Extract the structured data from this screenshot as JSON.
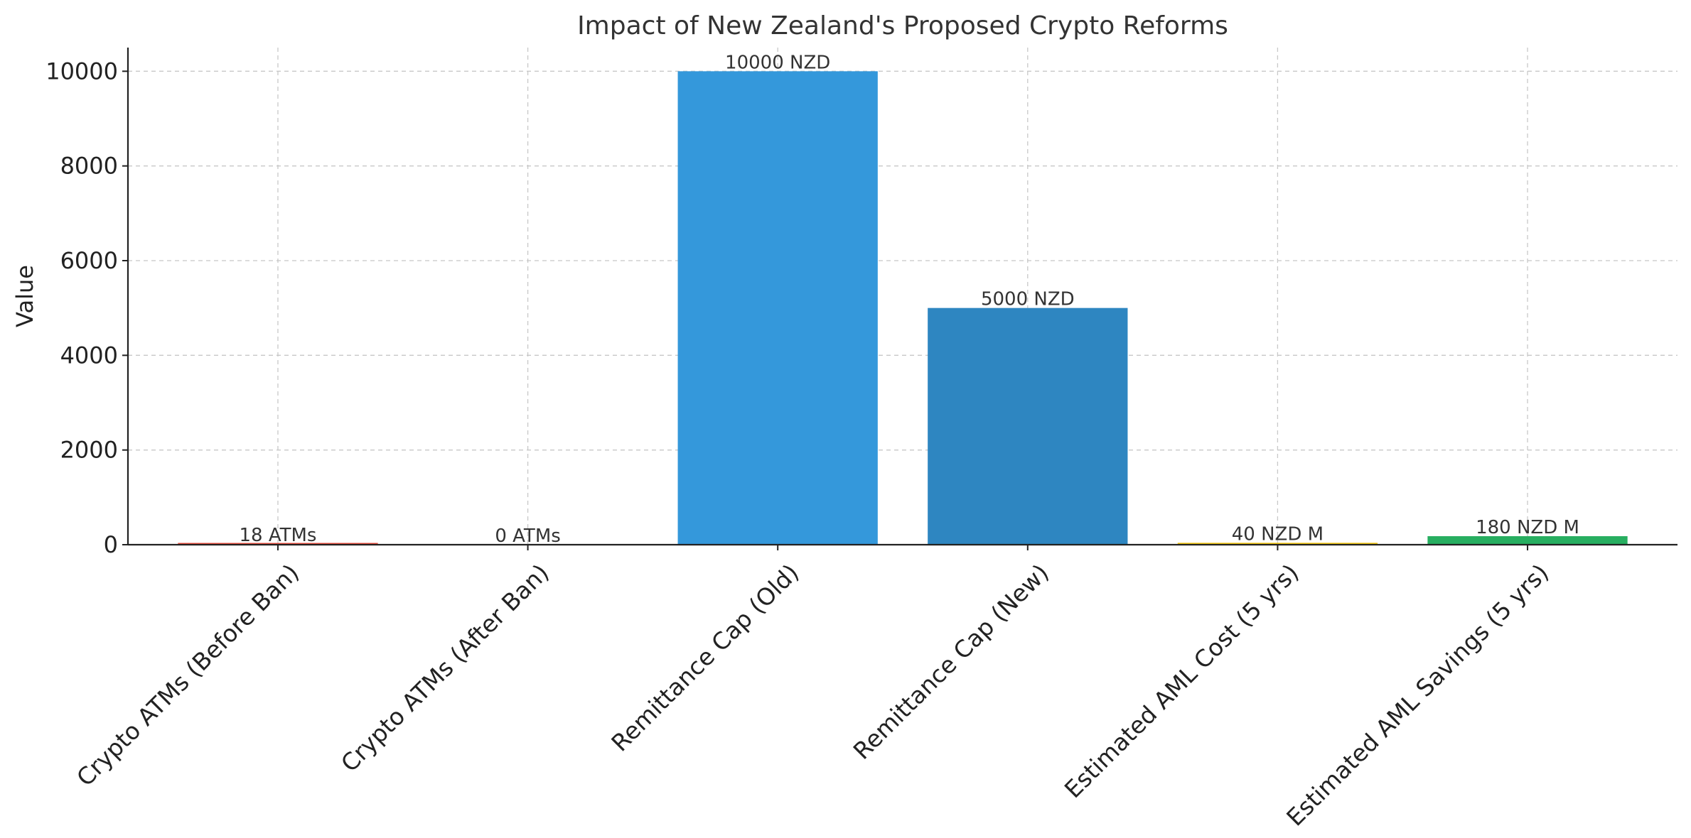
{
  "chart_data": {
    "type": "bar",
    "title": "Impact of New Zealand's Proposed Crypto Reforms",
    "xlabel": "",
    "ylabel": "Value",
    "ylim": [
      0,
      10500
    ],
    "yticks": [
      0,
      2000,
      4000,
      6000,
      8000,
      10000
    ],
    "grid": true,
    "categories": [
      "Crypto ATMs (Before Ban)",
      "Crypto ATMs (After Ban)",
      "Remittance Cap (Old)",
      "Remittance Cap (New)",
      "Estimated AML Cost (5 yrs)",
      "Estimated AML Savings (5 yrs)"
    ],
    "values": [
      18,
      0,
      10000,
      5000,
      40,
      180
    ],
    "data_labels": [
      "18 ATMs",
      "0 ATMs",
      "10000 NZD",
      "5000 NZD",
      "40 NZD M",
      "180 NZD M"
    ],
    "colors": [
      "#e74c3c",
      "#f39c12",
      "#3498db",
      "#2e86c1",
      "#f1c40f",
      "#27ae60"
    ]
  }
}
